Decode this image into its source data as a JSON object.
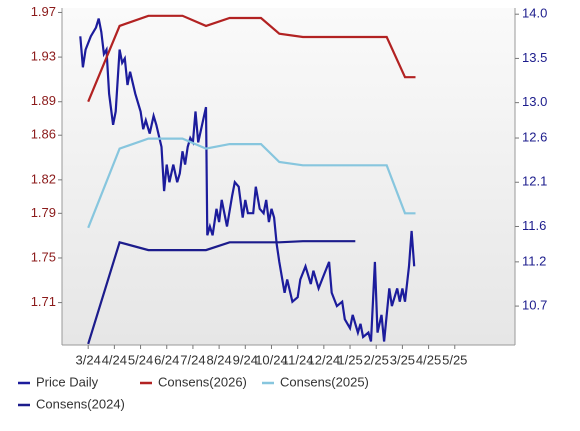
{
  "chart_data": {
    "type": "line",
    "xlim": [
      -1,
      16.3
    ],
    "xticks": [
      {
        "value": 0,
        "label": "3/24"
      },
      {
        "value": 1,
        "label": "4/24"
      },
      {
        "value": 2,
        "label": "5/24"
      },
      {
        "value": 3,
        "label": "6/24"
      },
      {
        "value": 4,
        "label": "7/24"
      },
      {
        "value": 5,
        "label": "8/24"
      },
      {
        "value": 6,
        "label": "9/24"
      },
      {
        "value": 7,
        "label": "10/24"
      },
      {
        "value": 8,
        "label": "11/24"
      },
      {
        "value": 9,
        "label": "12/24"
      },
      {
        "value": 10,
        "label": "1/25"
      },
      {
        "value": 11,
        "label": "2/25"
      },
      {
        "value": 12,
        "label": "3/25"
      },
      {
        "value": 13,
        "label": "4/25"
      },
      {
        "value": 14,
        "label": "5/25"
      }
    ],
    "ylim": [
      1.672,
      1.974
    ],
    "yticks": [
      1.71,
      1.75,
      1.79,
      1.82,
      1.86,
      1.89,
      1.93,
      1.97
    ],
    "y2lim": [
      10.26,
      14.07
    ],
    "y2ticks": [
      {
        "value": 10.7,
        "label": "10.7"
      },
      {
        "value": 11.2,
        "label": "11.2"
      },
      {
        "value": 11.6,
        "label": "11.6"
      },
      {
        "value": 12.1,
        "label": "12.1"
      },
      {
        "value": 12.6,
        "label": "12.6"
      },
      {
        "value": 13.0,
        "label": "13.0"
      },
      {
        "value": 13.5,
        "label": "13.5"
      },
      {
        "value": 14.0,
        "label": "14.0"
      }
    ],
    "series": [
      {
        "name": "Price Daily",
        "color": "#1c1c9c",
        "axis": "y2",
        "x": [
          -0.3,
          -0.2,
          -0.1,
          0.1,
          0.3,
          0.4,
          0.5,
          0.6,
          0.7,
          0.8,
          0.95,
          1.05,
          1.2,
          1.3,
          1.4,
          1.5,
          1.6,
          1.8,
          2.0,
          2.1,
          2.2,
          2.35,
          2.5,
          2.6,
          2.8,
          2.9,
          3.0,
          3.1,
          3.25,
          3.4,
          3.5,
          3.6,
          3.7,
          3.8,
          3.9,
          4.0,
          4.1,
          4.2,
          4.35,
          4.5,
          4.55,
          4.65,
          4.75,
          4.9,
          5.0,
          5.1,
          5.3,
          5.5,
          5.6,
          5.75,
          5.9,
          6.0,
          6.1,
          6.3,
          6.4,
          6.55,
          6.7,
          6.8,
          6.9,
          7.0,
          7.1,
          7.2,
          7.3,
          7.5,
          7.6,
          7.8,
          8.0,
          8.1,
          8.3,
          8.5,
          8.6,
          8.8,
          9.0,
          9.2,
          9.3,
          9.5,
          9.7,
          9.8,
          10.0,
          10.1,
          10.3,
          10.4,
          10.5,
          10.7,
          10.8,
          10.95,
          11.05,
          11.2,
          11.3,
          11.5,
          11.6,
          11.8,
          11.9,
          12.0,
          12.1,
          12.25,
          12.35,
          12.45
        ],
        "values": [
          13.75,
          13.4,
          13.6,
          13.75,
          13.85,
          13.95,
          13.8,
          13.55,
          13.6,
          13.1,
          12.75,
          12.9,
          13.6,
          13.45,
          13.5,
          13.2,
          13.35,
          13.1,
          12.9,
          12.7,
          12.8,
          12.65,
          12.85,
          12.75,
          12.5,
          12.0,
          12.3,
          12.1,
          12.3,
          12.1,
          12.2,
          12.45,
          12.3,
          12.5,
          12.6,
          12.55,
          12.9,
          12.55,
          12.75,
          12.95,
          11.5,
          11.6,
          11.5,
          11.8,
          11.65,
          11.9,
          11.6,
          11.95,
          12.1,
          12.05,
          11.7,
          11.9,
          11.75,
          11.75,
          12.05,
          11.8,
          11.75,
          11.9,
          11.65,
          11.8,
          11.7,
          11.4,
          11.2,
          10.85,
          11.0,
          10.75,
          10.8,
          11.0,
          11.15,
          10.95,
          11.1,
          10.9,
          11.05,
          11.2,
          10.85,
          10.7,
          10.75,
          10.55,
          10.45,
          10.6,
          10.4,
          10.5,
          10.35,
          10.4,
          10.3,
          11.2,
          10.4,
          10.6,
          10.3,
          10.9,
          10.7,
          10.9,
          10.75,
          10.9,
          10.75,
          11.15,
          11.55,
          11.15
        ]
      },
      {
        "name": "Consens(2026)",
        "color": "#b22222",
        "x": [
          0,
          1.2,
          2.3,
          3.6,
          4.5,
          5.4,
          6.6,
          7.3,
          8.2,
          11.4,
          12.1,
          12.5
        ],
        "values": [
          1.89,
          1.958,
          1.967,
          1.967,
          1.958,
          1.965,
          1.965,
          1.951,
          1.948,
          1.948,
          1.912,
          1.912
        ]
      },
      {
        "name": "Consens(2025)",
        "color": "#87c6de",
        "x": [
          0,
          1.2,
          2.3,
          3.6,
          4.5,
          5.4,
          6.6,
          7.3,
          8.2,
          11.4,
          12.1,
          12.5
        ],
        "values": [
          1.777,
          1.848,
          1.857,
          1.857,
          1.848,
          1.852,
          1.852,
          1.836,
          1.833,
          1.833,
          1.79,
          1.79
        ]
      },
      {
        "name": "Consens(2024)",
        "color": "#1c1c8c",
        "x": [
          0,
          1.2,
          2.3,
          4.5,
          5.4,
          7.3,
          8.2,
          10.2
        ],
        "values": [
          1.673,
          1.764,
          1.757,
          1.757,
          1.764,
          1.764,
          1.765,
          1.765
        ]
      }
    ]
  }
}
